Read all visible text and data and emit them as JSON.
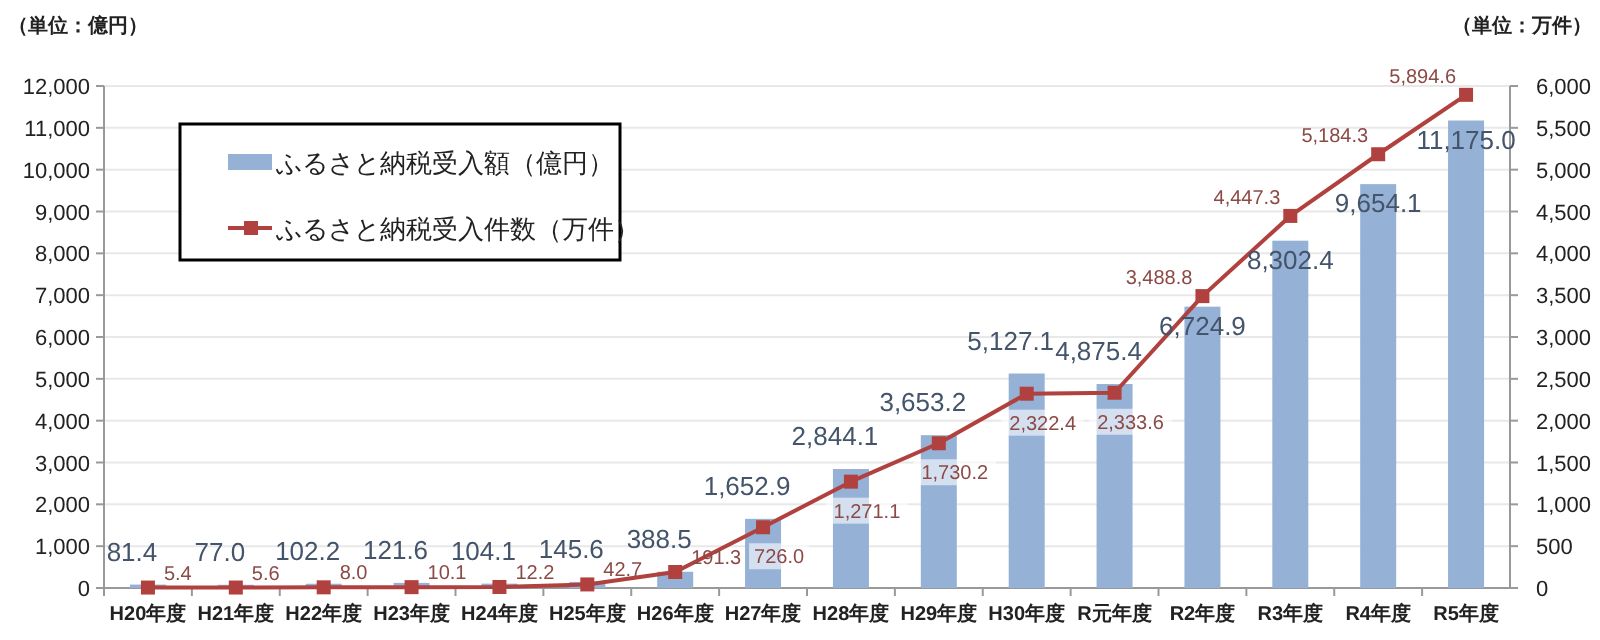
{
  "chart_data": {
    "type": "bar",
    "ylabel": "（単位：億円）",
    "y2label": "（単位：万件）",
    "categories": [
      "H20年度",
      "H21年度",
      "H22年度",
      "H23年度",
      "H24年度",
      "H25年度",
      "H26年度",
      "H27年度",
      "H28年度",
      "H29年度",
      "H30年度",
      "R元年度",
      "R2年度",
      "R3年度",
      "R4年度",
      "R5年度"
    ],
    "series": [
      {
        "name": "ふるさと納税受入額（億円）",
        "color": "#95b1d6",
        "values": [
          81.4,
          77.0,
          102.2,
          121.6,
          104.1,
          145.6,
          388.5,
          1652.9,
          2844.1,
          3653.2,
          5127.1,
          4875.4,
          6724.9,
          8302.4,
          9654.1,
          11175.0
        ],
        "value_labels": [
          "81.4",
          "77.0",
          "102.2",
          "121.6",
          "104.1",
          "145.6",
          "388.5",
          "1,652.9",
          "2,844.1",
          "3,653.2",
          "5,127.1",
          "4,875.4",
          "6,724.9",
          "8,302.4",
          "9,654.1",
          "11,175.0"
        ]
      },
      {
        "name": "ふるさと納税受入件数（万件）",
        "type": "line",
        "axis": "y2",
        "color": "#b0413e",
        "values": [
          5.4,
          5.6,
          8.0,
          10.1,
          12.2,
          42.7,
          191.3,
          726.0,
          1271.1,
          1730.2,
          2322.4,
          2333.6,
          3488.8,
          4447.3,
          5184.3,
          5894.6
        ],
        "value_labels": [
          "5.4",
          "5.6",
          "8.0",
          "10.1",
          "12.2",
          "42.7",
          "191.3",
          "726.0",
          "1,271.1",
          "1,730.2",
          "2,322.4",
          "2,333.6",
          "3,488.8",
          "4,447.3",
          "5,184.3",
          "5,894.6"
        ]
      }
    ],
    "ylim": [
      0,
      12000
    ],
    "yticks": [
      0,
      {
        "value": 1000,
        "label": "1,000"
      },
      {
        "value": 2000,
        "label": "2,000"
      },
      {
        "value": 3000,
        "label": "3,000"
      },
      {
        "value": 4000,
        "label": "4,000"
      },
      {
        "value": 5000,
        "label": "5,000"
      },
      {
        "value": 6000,
        "label": "6,000"
      },
      {
        "value": 7000,
        "label": "7,000"
      },
      {
        "value": 8000,
        "label": "8,000"
      },
      {
        "value": 9000,
        "label": "9,000"
      },
      {
        "value": 10000,
        "label": "10,000"
      },
      {
        "value": 11000,
        "label": "11,000"
      },
      {
        "value": 12000,
        "label": "12,000"
      }
    ],
    "y2lim": [
      0,
      6000
    ],
    "y2ticks": [
      0,
      500,
      {
        "value": 1000,
        "label": "1,000"
      },
      {
        "value": 1500,
        "label": "1,500"
      },
      {
        "value": 2000,
        "label": "2,000"
      },
      {
        "value": 2500,
        "label": "2,500"
      },
      {
        "value": 3000,
        "label": "3,000"
      },
      {
        "value": 3500,
        "label": "3,500"
      },
      {
        "value": 4000,
        "label": "4,000"
      },
      {
        "value": 4500,
        "label": "4,500"
      },
      {
        "value": 5000,
        "label": "5,000"
      },
      {
        "value": 5500,
        "label": "5,500"
      },
      {
        "value": 6000,
        "label": "6,000"
      }
    ],
    "grid": "y",
    "legend": "top left",
    "marker": "square",
    "line_style": "solid"
  }
}
